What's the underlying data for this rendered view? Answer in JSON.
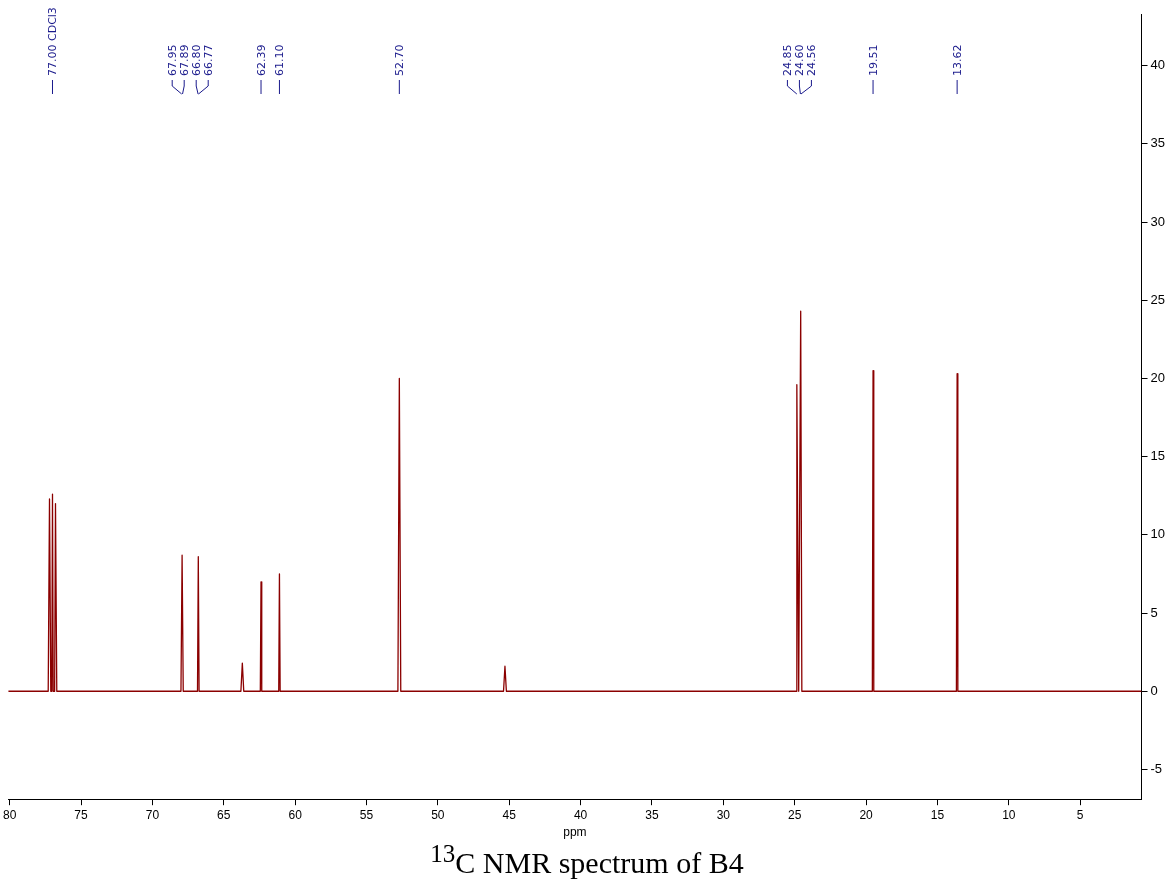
{
  "chart_data": {
    "type": "line",
    "title": "$^{13}$C NMR spectrum of B4",
    "xlabel": "ppm",
    "xlim": [
      80.1,
      0.7
    ],
    "xticks": [
      80,
      75,
      70,
      65,
      60,
      55,
      50,
      45,
      40,
      35,
      30,
      25,
      20,
      15,
      10,
      5
    ],
    "ylim": [
      -6.9,
      43.3
    ],
    "yticks": [
      -5,
      0,
      5,
      10,
      15,
      20,
      25,
      30,
      35,
      40
    ],
    "grid": false,
    "legend": false,
    "marker": "none",
    "line_style": "solid",
    "series": [
      {
        "color": "#8b0000",
        "x": [
          80.1,
          77.3,
          77.21,
          77.12,
          77.05,
          77.0,
          76.95,
          76.85,
          76.79,
          76.7,
          68.0,
          67.92,
          67.84,
          66.84,
          66.785,
          66.73,
          63.8,
          63.7,
          63.6,
          62.44,
          62.39,
          62.34,
          61.15,
          61.1,
          61.05,
          52.8,
          52.7,
          52.6,
          45.4,
          45.3,
          45.2,
          24.9,
          24.85,
          24.72,
          24.58,
          24.5,
          19.56,
          19.51,
          19.46,
          13.67,
          13.62,
          13.57,
          0.7
        ],
        "values": [
          0,
          0,
          12.3,
          0,
          0,
          12.6,
          0,
          0,
          12.0,
          0,
          0,
          8.7,
          0,
          0,
          8.6,
          0,
          0,
          1.8,
          0,
          0,
          7.0,
          0,
          0,
          7.5,
          0,
          0,
          20.0,
          0,
          0,
          1.6,
          0,
          0,
          19.6,
          0,
          24.3,
          0,
          0,
          20.5,
          0,
          0,
          20.3,
          0,
          0
        ]
      }
    ],
    "annotations": [
      {
        "text": "77.00 CDCl3",
        "x": 77.0
      },
      {
        "text": "67.95",
        "x": 67.95
      },
      {
        "text": "67.89",
        "x": 67.89
      },
      {
        "text": "66.80",
        "x": 66.8
      },
      {
        "text": "66.77",
        "x": 66.77
      },
      {
        "text": "62.39",
        "x": 62.39
      },
      {
        "text": "61.10",
        "x": 61.1
      },
      {
        "text": "52.70",
        "x": 52.7
      },
      {
        "text": "24.85",
        "x": 24.85
      },
      {
        "text": "24.60",
        "x": 24.6
      },
      {
        "text": "24.56",
        "x": 24.56
      },
      {
        "text": "19.51",
        "x": 19.51
      },
      {
        "text": "13.62",
        "x": 13.62
      }
    ]
  }
}
